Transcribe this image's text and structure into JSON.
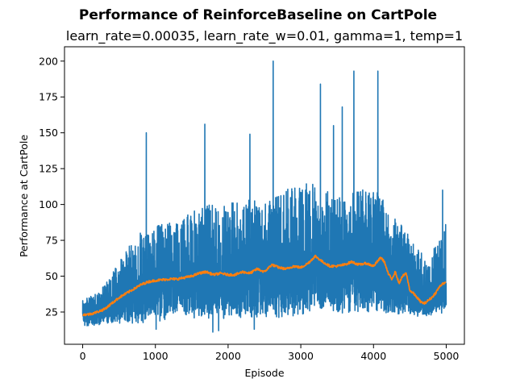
{
  "chart_data": {
    "type": "line",
    "title": "Performance of ReinforceBaseline on CartPole",
    "subtitle": "learn_rate=0.00035, learn_rate_w=0.01, gamma=1, temp=1",
    "xlabel": "Episode",
    "ylabel": "Performance at CartPole",
    "xlim": [
      -250,
      5250
    ],
    "ylim": [
      2.5,
      210
    ],
    "xticks": [
      0,
      1000,
      2000,
      3000,
      4000,
      5000
    ],
    "yticks": [
      25,
      50,
      75,
      100,
      125,
      150,
      175,
      200
    ],
    "grid": false,
    "series": [
      {
        "color": "#1f77b4",
        "points": 5000,
        "description_values": {
          "x": [
            0,
            250,
            500,
            750,
            1000,
            1250,
            1500,
            1750,
            2000,
            2250,
            2500,
            2750,
            3000,
            3250,
            3500,
            3750,
            4000,
            4250,
            4500,
            4750,
            5000
          ],
          "y_low": [
            15,
            16,
            17,
            17,
            18,
            19,
            19,
            20,
            20,
            21,
            21,
            21,
            22,
            25,
            22,
            23,
            25,
            23,
            22,
            22,
            22
          ],
          "y_high": [
            33,
            40,
            62,
            80,
            85,
            88,
            95,
            100,
            100,
            105,
            100,
            110,
            115,
            115,
            105,
            110,
            112,
            95,
            78,
            62,
            100
          ]
        },
        "peaks": [
          {
            "x": 875,
            "y": 150
          },
          {
            "x": 1680,
            "y": 156
          },
          {
            "x": 2620,
            "y": 200
          },
          {
            "x": 3270,
            "y": 184
          },
          {
            "x": 3730,
            "y": 193
          },
          {
            "x": 4060,
            "y": 193
          },
          {
            "x": 3570,
            "y": 168
          },
          {
            "x": 2300,
            "y": 149
          },
          {
            "x": 3450,
            "y": 155
          },
          {
            "x": 4950,
            "y": 110
          }
        ],
        "dips": [
          {
            "x": 1790,
            "y": 11
          },
          {
            "x": 1870,
            "y": 12
          },
          {
            "x": 1010,
            "y": 13
          },
          {
            "x": 2360,
            "y": 13
          }
        ]
      },
      {
        "color": "#ff7f0e",
        "smoothed": true,
        "x": [
          0,
          100,
          200,
          300,
          400,
          500,
          600,
          700,
          800,
          900,
          1000,
          1100,
          1200,
          1300,
          1400,
          1500,
          1600,
          1700,
          1800,
          1900,
          2000,
          2100,
          2200,
          2300,
          2400,
          2500,
          2600,
          2700,
          2800,
          2900,
          3000,
          3100,
          3200,
          3300,
          3400,
          3500,
          3600,
          3700,
          3800,
          3900,
          4000,
          4100,
          4150,
          4200,
          4250,
          4300,
          4350,
          4400,
          4450,
          4500,
          4550,
          4600,
          4650,
          4700,
          4750,
          4800,
          4850,
          4900,
          4950
        ],
        "y": [
          23,
          23.5,
          25,
          27,
          31,
          35,
          38,
          41,
          44,
          46,
          47,
          47.5,
          48,
          48,
          49,
          50,
          52,
          53,
          51,
          52,
          51,
          51,
          53,
          52,
          55,
          53,
          58,
          56,
          55,
          57,
          56,
          59,
          64,
          60,
          57,
          57,
          58,
          60,
          58,
          59,
          57,
          63,
          60,
          52,
          48,
          53,
          45,
          50,
          52,
          40,
          38,
          35,
          32,
          31,
          33,
          35,
          38,
          42,
          45
        ]
      }
    ]
  }
}
